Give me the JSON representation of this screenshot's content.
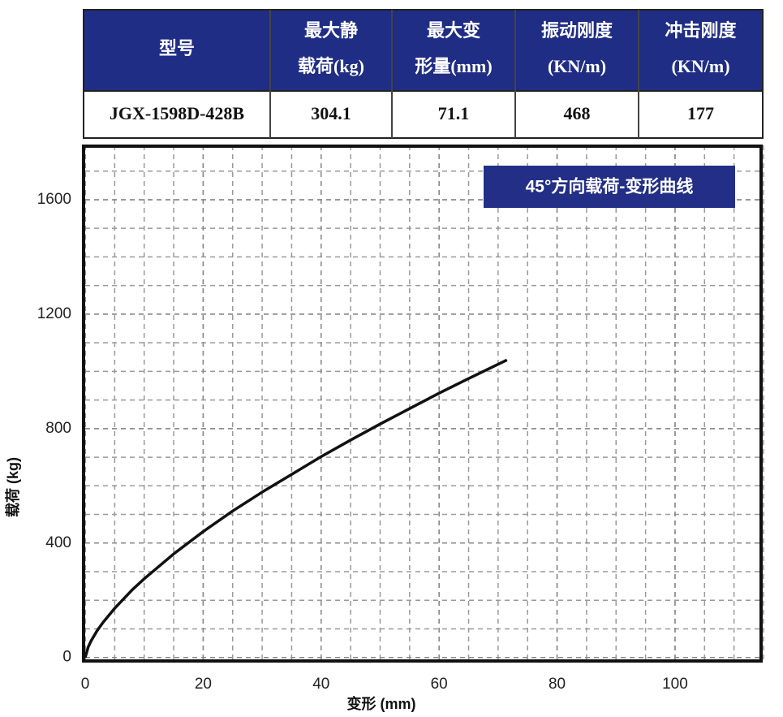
{
  "table": {
    "header": [
      [
        "型号"
      ],
      [
        "最大静",
        "载荷(kg)"
      ],
      [
        "最大变",
        "形量(mm)"
      ],
      [
        "振动刚度",
        "(KN/m)"
      ],
      [
        "冲击刚度",
        "(KN/m)"
      ]
    ],
    "rows": [
      [
        "JGX-1598D-428B",
        "304.1",
        "71.1",
        "468",
        "177"
      ]
    ]
  },
  "chart_data": {
    "type": "line",
    "title": "45°方向载荷-变形曲线",
    "x_label": "变形 (mm)",
    "y_label": "载荷 (kg)",
    "x": [
      0,
      0.5,
      1,
      2,
      3,
      5,
      8,
      10,
      15,
      20,
      25,
      30,
      35,
      40,
      45,
      50,
      55,
      60,
      65,
      71.5
    ],
    "series": [
      {
        "name": "载荷",
        "color": "#111111",
        "values": [
          0,
          36,
          58,
          93,
          122,
          172,
          237,
          275,
          362,
          440,
          512,
          578,
          640,
          702,
          760,
          816,
          870,
          924,
          975,
          1040
        ]
      }
    ],
    "xlim": [
      0,
      115
    ],
    "ylim": [
      -15,
      1790
    ],
    "xticks": [
      0,
      20,
      40,
      60,
      80,
      100
    ],
    "yticks": [
      0,
      400,
      800,
      1200,
      1600
    ],
    "grid": true
  }
}
